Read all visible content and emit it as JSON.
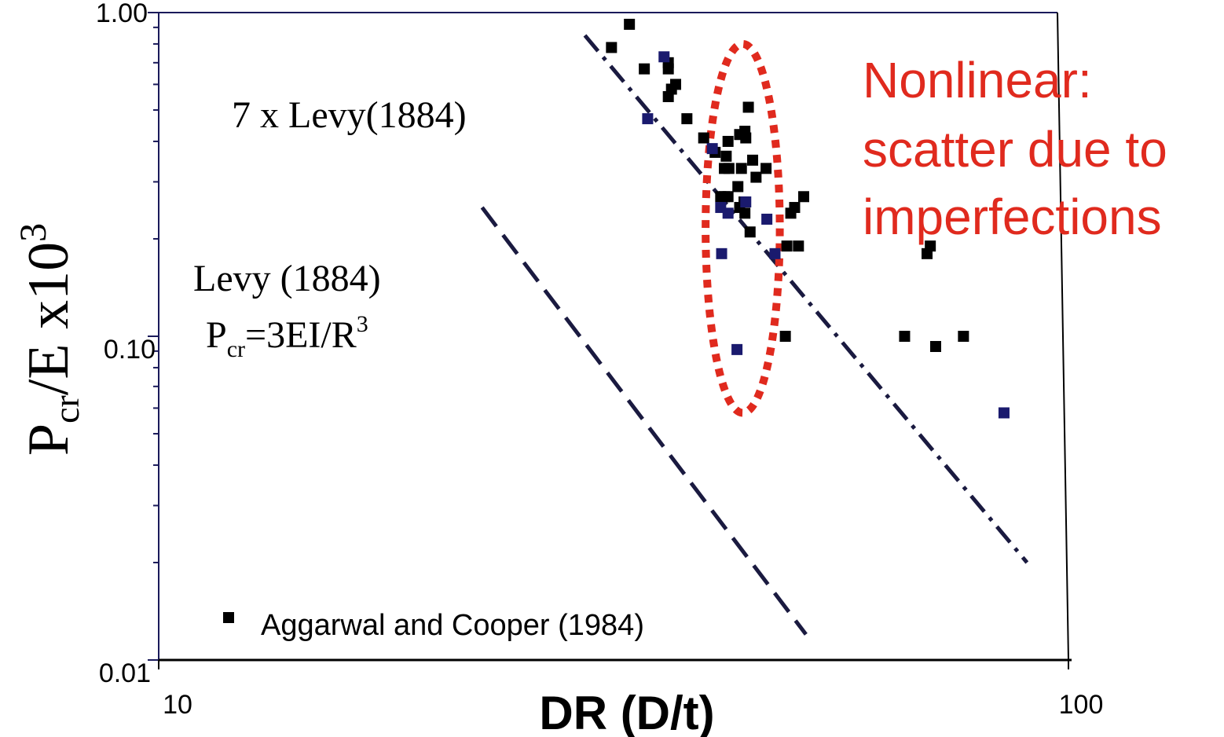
{
  "chart_data": {
    "type": "scatter",
    "xscale": "log",
    "yscale": "log",
    "xlim": [
      10,
      100
    ],
    "ylim": [
      0.01,
      1.0
    ],
    "x_tick_labels": [
      "10",
      "100"
    ],
    "y_tick_labels": [
      "1.00",
      "0.10",
      "0.01"
    ],
    "xlabel": "DR (D/t)",
    "ylabel": {
      "base": "P",
      "sub": "cr",
      "mid": "/E x10",
      "sup": "3"
    },
    "legend": {
      "label": "Aggarwal and Cooper (1984)",
      "position": "bottom-left"
    },
    "annotations": {
      "seven_levy": "7 x Levy(1884)",
      "levy": "Levy (1884)",
      "formula": {
        "base": "P",
        "sub": "cr",
        "rest": "=3EI/R",
        "sup": "3"
      },
      "nonlinear": [
        "Nonlinear:",
        "scatter due to",
        "imperfections"
      ]
    },
    "lines": [
      {
        "label": "Levy (1884)",
        "style": "dashed",
        "color": "#1a1a40",
        "points": [
          [
            22.9,
            0.25
          ],
          [
            52.5,
            0.012
          ]
        ]
      },
      {
        "label": "7 x Levy(1884)",
        "style": "dashdot",
        "color": "#1a1a40",
        "points": [
          [
            29.8,
            0.85
          ],
          [
            92.5,
            0.02
          ]
        ]
      }
    ],
    "ellipse": {
      "center": [
        44.7,
        0.22
      ],
      "x_range": [
        40.6,
        49.1
      ],
      "y_range": [
        0.058,
        0.8
      ],
      "color": "#e02a1e"
    },
    "series": [
      {
        "name": "Aggarwal and Cooper (1984)",
        "color": "#000000",
        "points": [
          [
            33.4,
            0.92
          ],
          [
            31.9,
            0.78
          ],
          [
            34.7,
            0.67
          ],
          [
            36.9,
            0.7
          ],
          [
            36.9,
            0.67
          ],
          [
            37.2,
            0.58
          ],
          [
            37.6,
            0.6
          ],
          [
            36.9,
            0.55
          ],
          [
            38.7,
            0.47
          ],
          [
            40.4,
            0.41
          ],
          [
            41.6,
            0.37
          ],
          [
            43.0,
            0.4
          ],
          [
            42.8,
            0.36
          ],
          [
            42.6,
            0.33
          ],
          [
            43.1,
            0.33
          ],
          [
            44.3,
            0.42
          ],
          [
            44.9,
            0.43
          ],
          [
            45.0,
            0.41
          ],
          [
            45.3,
            0.51
          ],
          [
            45.8,
            0.35
          ],
          [
            47.4,
            0.33
          ],
          [
            46.2,
            0.31
          ],
          [
            44.5,
            0.33
          ],
          [
            44.1,
            0.29
          ],
          [
            42.6,
            0.27
          ],
          [
            42.2,
            0.27
          ],
          [
            43.0,
            0.27
          ],
          [
            44.8,
            0.26
          ],
          [
            44.3,
            0.25
          ],
          [
            44.9,
            0.24
          ],
          [
            45.5,
            0.21
          ],
          [
            50.0,
            0.19
          ],
          [
            50.5,
            0.24
          ],
          [
            51.0,
            0.25
          ],
          [
            51.5,
            0.19
          ],
          [
            52.2,
            0.27
          ],
          [
            49.8,
            0.1
          ],
          [
            71.6,
            0.18
          ],
          [
            72.2,
            0.19
          ],
          [
            67.6,
            0.1
          ],
          [
            73.2,
            0.093
          ],
          [
            78.6,
            0.1
          ]
        ]
      },
      {
        "name": "",
        "color": "#1a1a6e",
        "points": [
          [
            36.5,
            0.73
          ],
          [
            35.0,
            0.47
          ],
          [
            41.3,
            0.38
          ],
          [
            42.2,
            0.25
          ],
          [
            43.0,
            0.24
          ],
          [
            45.0,
            0.26
          ],
          [
            44.0,
            0.091
          ],
          [
            47.5,
            0.23
          ],
          [
            48.5,
            0.18
          ],
          [
            42.3,
            0.18
          ],
          [
            87.2,
            0.058
          ]
        ]
      }
    ]
  }
}
